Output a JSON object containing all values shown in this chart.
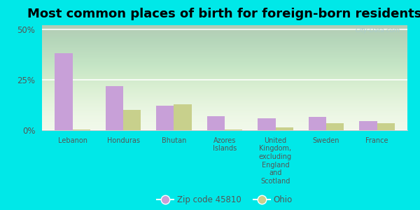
{
  "title": "Most common places of birth for foreign-born residents",
  "categories": [
    "Lebanon",
    "Honduras",
    "Bhutan",
    "Azores\nIslands",
    "United\nKingdom,\nexcluding\nEngland\nand\nScotland",
    "Sweden",
    "France"
  ],
  "zip_values": [
    38.0,
    22.0,
    12.0,
    7.0,
    6.0,
    6.5,
    4.5
  ],
  "ohio_values": [
    0.5,
    10.0,
    13.0,
    0.5,
    1.5,
    3.5,
    3.5
  ],
  "zip_color": "#c8a0d8",
  "ohio_color": "#c8d08c",
  "background_color": "#00e8e8",
  "ylabel_ticks": [
    "0%",
    "25%",
    "50%"
  ],
  "ytick_values": [
    0,
    25,
    50
  ],
  "ylim": [
    0,
    52
  ],
  "bar_width": 0.35,
  "zip_label": "Zip code 45810",
  "ohio_label": "Ohio",
  "title_fontsize": 13,
  "watermark": "City-Data.com"
}
